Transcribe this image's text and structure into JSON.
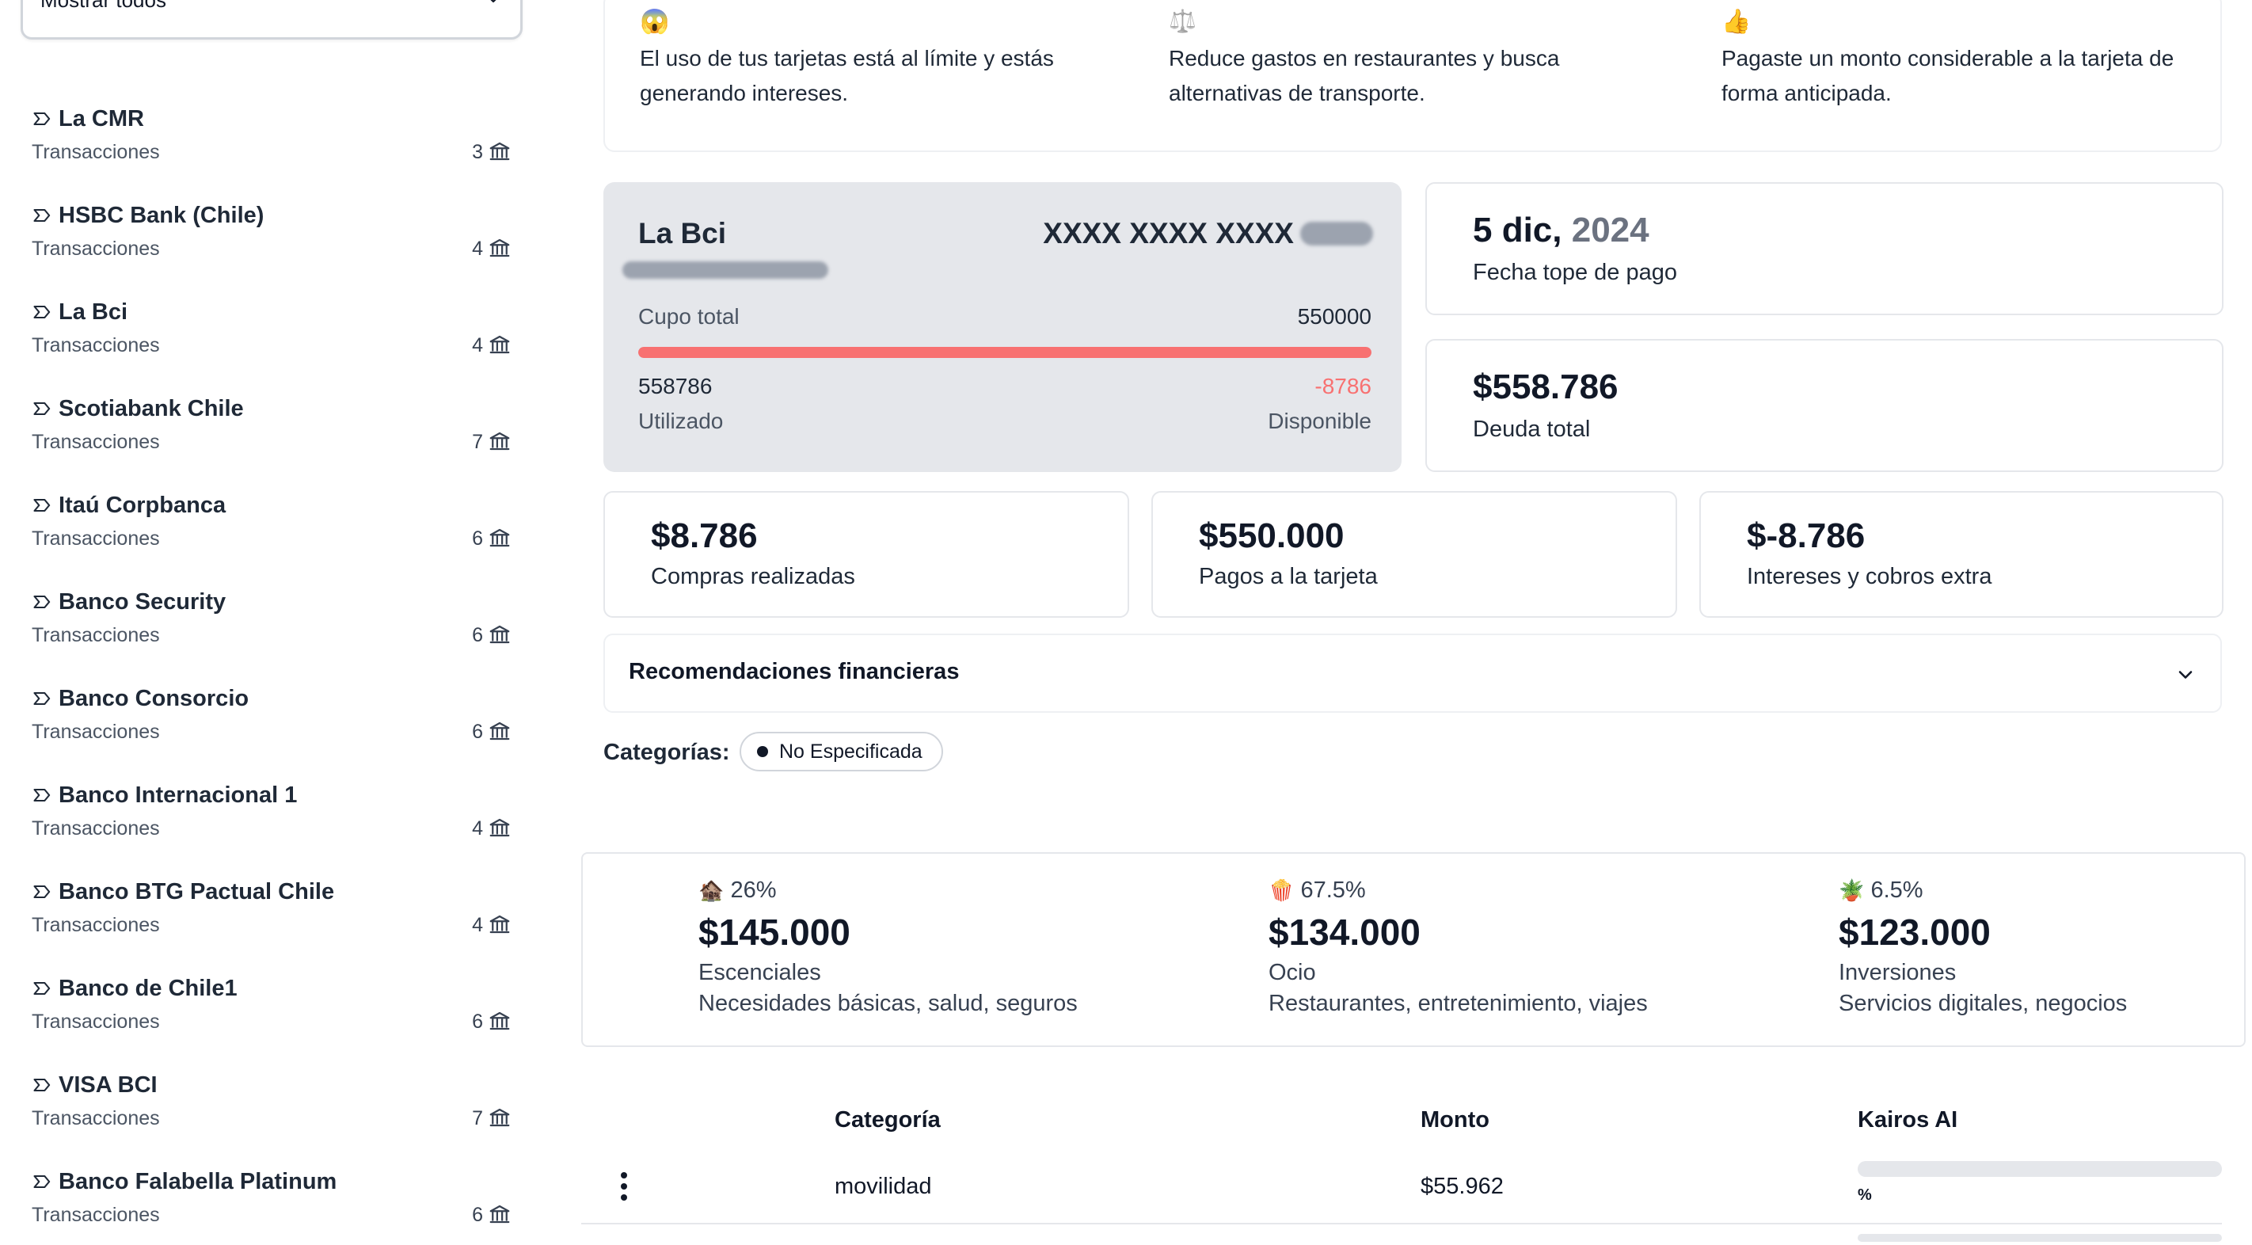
{
  "sidebar": {
    "filter": {
      "value": "Mostrar todos"
    },
    "banks": [
      {
        "name": "La CMR",
        "subtitle": "Transacciones",
        "count": "3"
      },
      {
        "name": "HSBC Bank (Chile)",
        "subtitle": "Transacciones",
        "count": "4"
      },
      {
        "name": "La Bci",
        "subtitle": "Transacciones",
        "count": "4"
      },
      {
        "name": "Scotiabank Chile",
        "subtitle": "Transacciones",
        "count": "7"
      },
      {
        "name": "Itaú Corpbanca",
        "subtitle": "Transacciones",
        "count": "6"
      },
      {
        "name": "Banco Security",
        "subtitle": "Transacciones",
        "count": "6"
      },
      {
        "name": "Banco Consorcio",
        "subtitle": "Transacciones",
        "count": "6"
      },
      {
        "name": "Banco Internacional 1",
        "subtitle": "Transacciones",
        "count": "4"
      },
      {
        "name": "Banco BTG Pactual Chile",
        "subtitle": "Transacciones",
        "count": "4"
      },
      {
        "name": "Banco de Chile1",
        "subtitle": "Transacciones",
        "count": "6"
      },
      {
        "name": "VISA BCI",
        "subtitle": "Transacciones",
        "count": "7"
      },
      {
        "name": "Banco Falabella Platinum",
        "subtitle": "Transacciones",
        "count": "6"
      }
    ]
  },
  "alerts": [
    {
      "emoji": "😱",
      "text": "El uso de tus tarjetas está al límite y estás generando intereses."
    },
    {
      "emoji": "⚖️",
      "text": "Reduce gastos en restaurantes y busca alternativas de transporte."
    },
    {
      "emoji": "👍",
      "text": "Pagaste un monto considerable a la tarjeta de forma anticipada."
    }
  ],
  "card": {
    "bank": "La Bci",
    "masked_number": "XXXX XXXX XXXX",
    "limit_label": "Cupo total",
    "limit_value": "550000",
    "used_value": "558786",
    "used_label": "Utilizado",
    "available_value": "-8786",
    "available_label": "Disponible",
    "usage_fraction": 1.0
  },
  "due": {
    "day": "5 dic,",
    "year": "2024",
    "label": "Fecha tope de pago"
  },
  "debt": {
    "value": "$558.786",
    "label": "Deuda total"
  },
  "stats": [
    {
      "value": "$8.786",
      "label": "Compras realizadas"
    },
    {
      "value": "$550.000",
      "label": "Pagos a la tarjeta"
    },
    {
      "value": "$-8.786",
      "label": "Intereses y cobros extra"
    }
  ],
  "recommendations": {
    "title": "Recomendaciones financieras"
  },
  "categories": {
    "label": "Categorías:",
    "chips": [
      "No Especificada"
    ]
  },
  "budget": [
    {
      "emoji": "🏚️",
      "pct": "26%",
      "amount": "$145.000",
      "category": "Escenciales",
      "description": "Necesidades básicas, salud, seguros"
    },
    {
      "emoji": "🍿",
      "pct": "67.5%",
      "amount": "$134.000",
      "category": "Ocio",
      "description": "Restaurantes, entretenimiento, viajes"
    },
    {
      "emoji": "🪴",
      "pct": "6.5%",
      "amount": "$123.000",
      "category": "Inversiones",
      "description": "Servicios digitales, negocios"
    }
  ],
  "table": {
    "headers": {
      "category": "Categoría",
      "amount": "Monto",
      "ai": "Kairos AI"
    },
    "rows": [
      {
        "category": "movilidad",
        "amount": "$55.962",
        "ai_pct": "%"
      }
    ]
  },
  "colors": {
    "usage_bar": "#f87171",
    "negative": "#f87171",
    "card_bg": "#e5e7eb"
  }
}
